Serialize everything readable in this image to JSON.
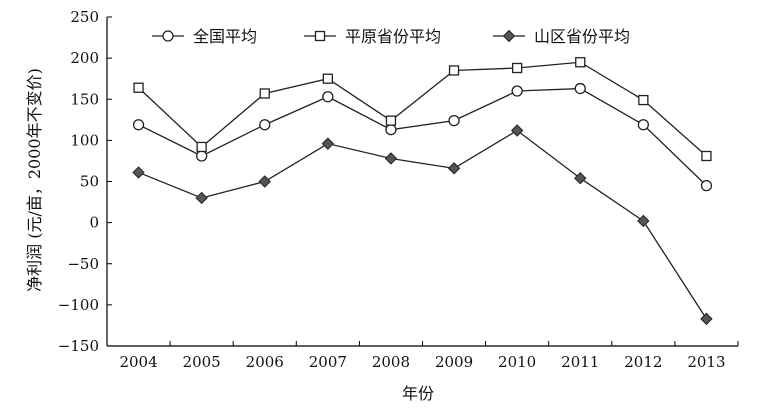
{
  "chart_data": {
    "type": "line",
    "xlabel": "年份",
    "ylabel": "净利润 (元/亩，2000年不变价)",
    "categories": [
      "2004",
      "2005",
      "2006",
      "2007",
      "2008",
      "2009",
      "2010",
      "2011",
      "2012",
      "2013"
    ],
    "yticks": [
      "250",
      "200",
      "150",
      "100",
      "50",
      "0",
      "−50",
      "−100",
      "−150"
    ],
    "ylim": [
      -150,
      250
    ],
    "grid": false,
    "legend_position": "top",
    "series": [
      {
        "name": "全国平均",
        "marker": "circle",
        "color": "#222222",
        "values": [
          119,
          81,
          119,
          153,
          113,
          124,
          160,
          163,
          119,
          45
        ]
      },
      {
        "name": "平原省份平均",
        "marker": "square",
        "color": "#222222",
        "values": [
          164,
          92,
          157,
          175,
          124,
          185,
          188,
          195,
          149,
          81
        ]
      },
      {
        "name": "山区省份平均",
        "marker": "diamond",
        "color": "#222222",
        "values": [
          61,
          30,
          50,
          96,
          78,
          66,
          112,
          54,
          2,
          -117
        ]
      }
    ]
  }
}
